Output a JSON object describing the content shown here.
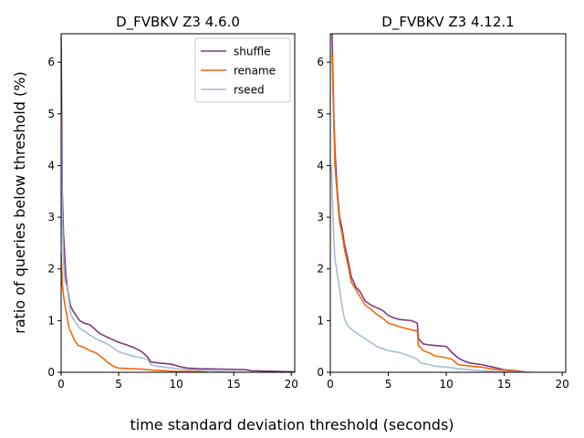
{
  "figure": {
    "xlabel": "time standard deviation threshold (seconds)",
    "ylabel": "ratio of queries below threshold (%)"
  },
  "chart_data": [
    {
      "type": "line",
      "title": "D_FVBKV Z3 4.6.0",
      "xlim": [
        0,
        20.3
      ],
      "ylim": [
        0,
        6.55
      ],
      "xticks": [
        0,
        5,
        10,
        15,
        20
      ],
      "yticks": [
        0,
        1,
        2,
        3,
        4,
        5,
        6
      ],
      "grid": false,
      "legend": "top-right",
      "series": [
        {
          "name": "shuffle",
          "color": "#7b3b7d",
          "x": [
            0,
            0.1,
            0.2,
            0.3,
            0.4,
            0.5,
            0.6,
            0.8,
            1.0,
            1.3,
            1.6,
            2.0,
            2.5,
            3.0,
            3.3,
            3.8,
            4.3,
            5.0,
            5.7,
            6.3,
            7.0,
            7.5,
            7.8,
            8.5,
            9.5,
            10.5,
            11.0,
            12.0,
            14.0,
            16.0,
            16.5,
            20.3
          ],
          "y": [
            6.5,
            3.5,
            2.7,
            2.3,
            1.9,
            1.7,
            1.55,
            1.3,
            1.2,
            1.1,
            1.0,
            0.95,
            0.92,
            0.82,
            0.76,
            0.7,
            0.65,
            0.58,
            0.53,
            0.48,
            0.4,
            0.3,
            0.2,
            0.18,
            0.16,
            0.1,
            0.08,
            0.07,
            0.06,
            0.05,
            0.03,
            0.01
          ]
        },
        {
          "name": "rename",
          "color": "#f2690f",
          "x": [
            0,
            0.1,
            0.2,
            0.3,
            0.4,
            0.5,
            0.6,
            0.7,
            0.9,
            1.2,
            1.5,
            2.0,
            2.5,
            3.0,
            3.5,
            4.0,
            4.5,
            5.0,
            7.0,
            7.5,
            8.0,
            9.0,
            10.0,
            12.0,
            12.8
          ],
          "y": [
            2.3,
            1.7,
            1.5,
            1.35,
            1.2,
            1.1,
            0.95,
            0.85,
            0.75,
            0.6,
            0.52,
            0.48,
            0.42,
            0.38,
            0.3,
            0.2,
            0.12,
            0.08,
            0.06,
            0.05,
            0.04,
            0.03,
            0.02,
            0.015,
            0.0
          ]
        },
        {
          "name": "rseed",
          "color": "#a6bcd6",
          "x": [
            0,
            0.1,
            0.2,
            0.3,
            0.5,
            0.6,
            0.7,
            0.8,
            1.0,
            1.3,
            1.6,
            2.0,
            2.5,
            3.0,
            3.5,
            4.0,
            4.5,
            5.0,
            5.5,
            6.0,
            6.5,
            7.0,
            7.5,
            7.8,
            8.2,
            9.0,
            10.0,
            11.0,
            12.0,
            14.0,
            16.0
          ],
          "y": [
            5.0,
            3.0,
            2.2,
            1.8,
            1.65,
            1.5,
            1.35,
            1.15,
            1.05,
            0.95,
            0.85,
            0.8,
            0.72,
            0.65,
            0.6,
            0.55,
            0.48,
            0.4,
            0.36,
            0.33,
            0.3,
            0.28,
            0.25,
            0.15,
            0.12,
            0.1,
            0.07,
            0.05,
            0.04,
            0.02,
            0.0
          ]
        }
      ]
    },
    {
      "type": "line",
      "title": "D_FVBKV Z3 4.12.1",
      "xlim": [
        0,
        20.3
      ],
      "ylim": [
        0,
        6.55
      ],
      "xticks": [
        0,
        5,
        10,
        15,
        20
      ],
      "yticks": [
        0,
        1,
        2,
        3,
        4,
        5,
        6
      ],
      "grid": false,
      "series": [
        {
          "name": "shuffle",
          "color": "#7b3b7d",
          "x": [
            0.15,
            0.3,
            0.4,
            0.6,
            0.8,
            1.0,
            1.2,
            1.5,
            1.8,
            2.2,
            2.6,
            3.0,
            3.5,
            4.0,
            4.5,
            5.0,
            5.5,
            6.0,
            7.0,
            7.5,
            7.6,
            7.8,
            8.0,
            8.5,
            9.0,
            10.0,
            10.5,
            11.0,
            11.5,
            12.0,
            13.0,
            14.0,
            15.0,
            16.0,
            17.0
          ],
          "y": [
            6.55,
            5.0,
            4.3,
            3.5,
            3.0,
            2.8,
            2.5,
            2.2,
            1.85,
            1.65,
            1.55,
            1.38,
            1.3,
            1.25,
            1.2,
            1.1,
            1.05,
            1.02,
            1.0,
            0.95,
            0.65,
            0.6,
            0.55,
            0.53,
            0.52,
            0.5,
            0.38,
            0.28,
            0.22,
            0.18,
            0.15,
            0.1,
            0.05,
            0.03,
            0.0
          ]
        },
        {
          "name": "rename",
          "color": "#f2690f",
          "x": [
            0.15,
            0.3,
            0.4,
            0.6,
            0.8,
            1.0,
            1.2,
            1.5,
            1.8,
            2.2,
            2.6,
            3.0,
            3.5,
            4.0,
            4.5,
            5.0,
            5.5,
            6.0,
            7.0,
            7.5,
            7.6,
            7.8,
            8.0,
            8.5,
            9.0,
            10.0,
            10.5,
            11.0,
            12.0,
            13.0,
            14.0,
            15.0,
            16.0,
            17.0
          ],
          "y": [
            6.2,
            4.8,
            4.0,
            3.4,
            2.9,
            2.7,
            2.4,
            2.1,
            1.75,
            1.6,
            1.45,
            1.3,
            1.22,
            1.12,
            1.05,
            0.95,
            0.92,
            0.88,
            0.82,
            0.8,
            0.5,
            0.48,
            0.42,
            0.38,
            0.32,
            0.28,
            0.25,
            0.15,
            0.12,
            0.1,
            0.06,
            0.04,
            0.02,
            0.0
          ]
        },
        {
          "name": "rseed",
          "color": "#a6bcd6",
          "x": [
            0.1,
            0.2,
            0.3,
            0.4,
            0.6,
            0.8,
            1.0,
            1.2,
            1.5,
            2.0,
            2.5,
            3.0,
            3.5,
            4.0,
            5.0,
            6.0,
            7.0,
            7.5,
            7.8,
            8.5,
            9.0,
            10.0,
            11.0,
            12.0,
            13.0,
            14.0,
            15.0,
            17.5
          ],
          "y": [
            4.0,
            3.2,
            2.6,
            2.2,
            1.9,
            1.6,
            1.3,
            1.05,
            0.9,
            0.8,
            0.72,
            0.65,
            0.58,
            0.5,
            0.42,
            0.38,
            0.3,
            0.25,
            0.18,
            0.15,
            0.12,
            0.1,
            0.07,
            0.05,
            0.03,
            0.02,
            0.01,
            0.0
          ]
        }
      ]
    }
  ]
}
